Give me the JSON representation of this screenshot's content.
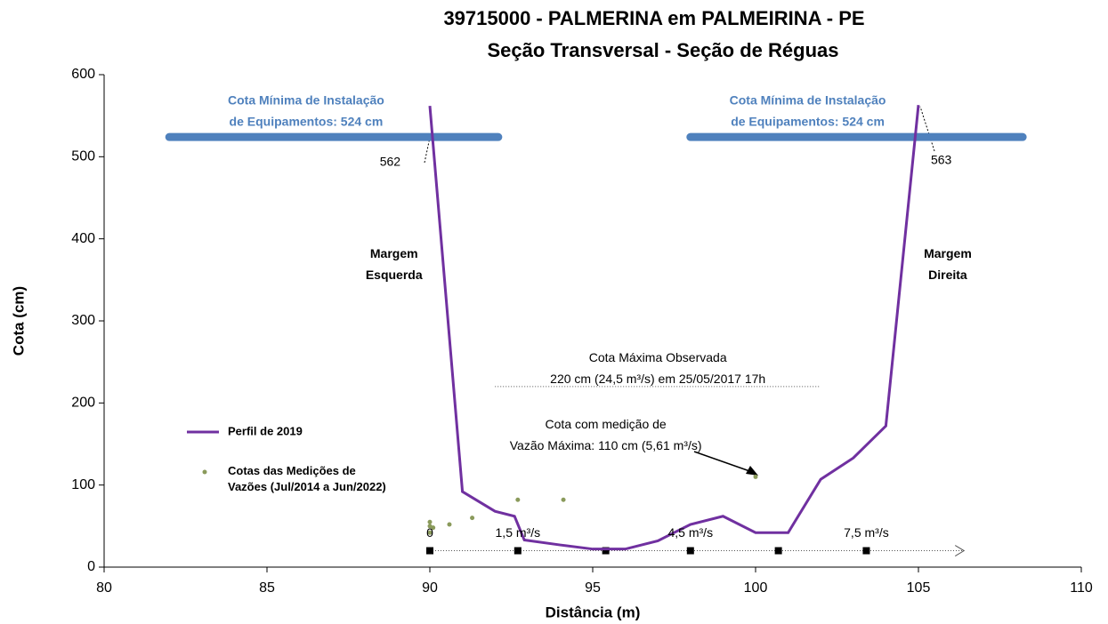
{
  "chart_data": {
    "type": "line",
    "title": [
      "39715000 - PALMERINA em PALMEIRINA - PE",
      "Seção Transversal - Seção de Réguas"
    ],
    "xlabel": "Distância (m)",
    "ylabel": "Cota (cm)",
    "xlim": [
      80,
      110
    ],
    "xticks": [
      80,
      85,
      90,
      95,
      100,
      105,
      110
    ],
    "ylim": [
      0,
      600
    ],
    "yticks": [
      0,
      100,
      200,
      300,
      400,
      500,
      600
    ],
    "grid": false,
    "legend": "left",
    "series": [
      {
        "name": "Perfil de 2019",
        "kind": "line",
        "color": "#7030a0",
        "x": [
          90,
          91,
          92,
          92.6,
          92.9,
          94,
          95,
          96,
          97,
          97.5,
          98,
          99,
          100,
          101,
          102,
          103,
          104,
          105
        ],
        "values": [
          562,
          92,
          68,
          62,
          33,
          27,
          22,
          22,
          32,
          42,
          52,
          62,
          42,
          42,
          107,
          133,
          172,
          563
        ]
      },
      {
        "name": "Cotas das Medições de Vazões (Jul/2014 a Jun/2022)",
        "kind": "scatter",
        "color": "#8a9a5b",
        "x": [
          90,
          90,
          90.1,
          90,
          90.6,
          91.3,
          92.7,
          94.1,
          100
        ],
        "values": [
          55,
          50,
          48,
          42,
          52,
          60,
          82,
          82,
          110
        ]
      }
    ],
    "rulers": {
      "color": "#000000",
      "x": [
        90,
        92.7,
        95.4,
        98,
        100.7,
        103.4
      ],
      "values": [
        20,
        20,
        20,
        20,
        20,
        20
      ],
      "arrow_end": 106.4
    },
    "thresholds": [
      {
        "value": 524,
        "x": [
          82,
          92.1
        ],
        "color": "#4f81bd",
        "label": [
          "Cota Mínima de Instalação",
          "de Equipamentos: 524 cm"
        ],
        "lx": 86.2,
        "ly": 555
      },
      {
        "value": 524,
        "x": [
          98,
          108.2
        ],
        "color": "#4f81bd",
        "label": [
          "Cota Mínima de Instalação",
          "de Equipamentos: 524 cm"
        ],
        "lx": 101.6,
        "ly": 555
      }
    ],
    "max_line": {
      "value": 220,
      "x": [
        92,
        102
      ]
    },
    "annotations": [
      {
        "text": [
          "562"
        ],
        "x": 89.1,
        "y": 493,
        "anchor": "end"
      },
      {
        "text": [
          "563"
        ],
        "x": 105.7,
        "y": 495,
        "anchor": "middle"
      },
      {
        "text": [
          "Margem",
          "Esquerda"
        ],
        "x": 88.9,
        "y": 368,
        "anchor": "middle",
        "bold": true
      },
      {
        "text": [
          "Margem",
          "Direita"
        ],
        "x": 105.9,
        "y": 368,
        "anchor": "middle",
        "bold": true
      },
      {
        "text": [
          "Cota Máxima Observada",
          "220 cm (24,5 m³/s) em 25/05/2017 17h"
        ],
        "x": 97.0,
        "y": 241,
        "anchor": "middle"
      },
      {
        "text": [
          "Cota com medição de",
          "Vazão Máxima: 110 cm (5,61 m³/s)"
        ],
        "x": 95.4,
        "y": 160,
        "anchor": "middle"
      },
      {
        "text": [
          "0"
        ],
        "x": 90,
        "y": 41,
        "anchor": "middle"
      },
      {
        "text": [
          "1,5 m³/s"
        ],
        "x": 92.7,
        "y": 41,
        "anchor": "middle"
      },
      {
        "text": [
          "4,5 m³/s"
        ],
        "x": 98,
        "y": 41,
        "anchor": "middle"
      },
      {
        "text": [
          "7,5 m³/s"
        ],
        "x": 103.4,
        "y": 41,
        "anchor": "middle"
      }
    ]
  }
}
